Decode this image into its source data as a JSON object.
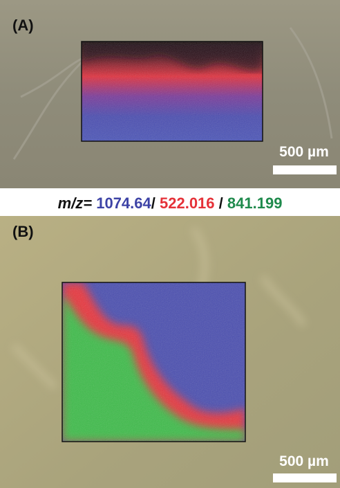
{
  "panels": [
    {
      "label": "(A)",
      "scale_bar": "500 µm"
    },
    {
      "label": "(B)",
      "scale_bar": "500 µm"
    }
  ],
  "legend": {
    "prefix": "m/z=",
    "separator": "/",
    "items": [
      {
        "text": "1074.64",
        "color": "#3d43a6"
      },
      {
        "text": "522.016",
        "color": "#e53138"
      },
      {
        "text": "841.199",
        "color": "#1f8a4c"
      }
    ]
  }
}
